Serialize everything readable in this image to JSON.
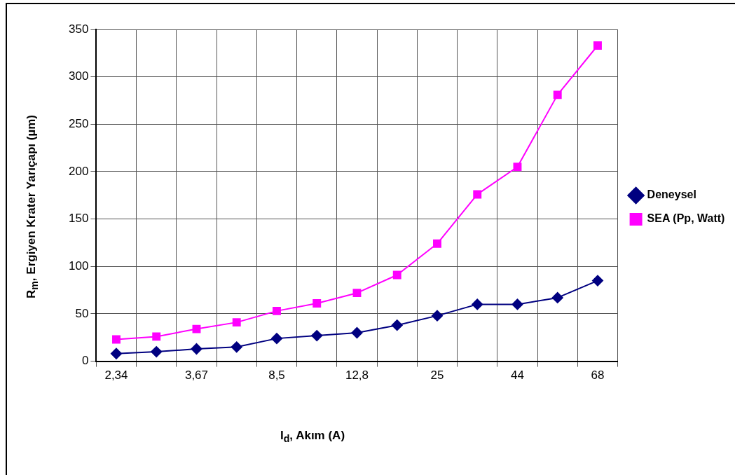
{
  "chart_data": {
    "type": "line",
    "xlabel": "I$_{d}$, Akım (A)",
    "ylabel": "R$_{m}$, Ergiyen Krater Yarıçapı (µm)",
    "categories": [
      "2,34",
      null,
      "3,67",
      null,
      "8,5",
      null,
      "12,8",
      null,
      "25",
      null,
      "44",
      null,
      "68"
    ],
    "series": [
      {
        "name": "Deneysel",
        "color": "#000080",
        "marker": "diamond",
        "values": [
          8,
          10,
          13,
          15,
          24,
          27,
          30,
          38,
          48,
          60,
          60,
          67,
          85
        ]
      },
      {
        "name": "SEA (Pp, Watt)",
        "color": "#ff00ff",
        "marker": "square",
        "values": [
          23,
          26,
          34,
          41,
          53,
          61,
          72,
          91,
          124,
          176,
          205,
          281,
          333
        ]
      }
    ],
    "ylim": [
      0,
      350
    ],
    "yticks": [
      0,
      50,
      100,
      150,
      200,
      250,
      300,
      350
    ],
    "grid": true,
    "legend": "right",
    "line_style": "solid"
  }
}
